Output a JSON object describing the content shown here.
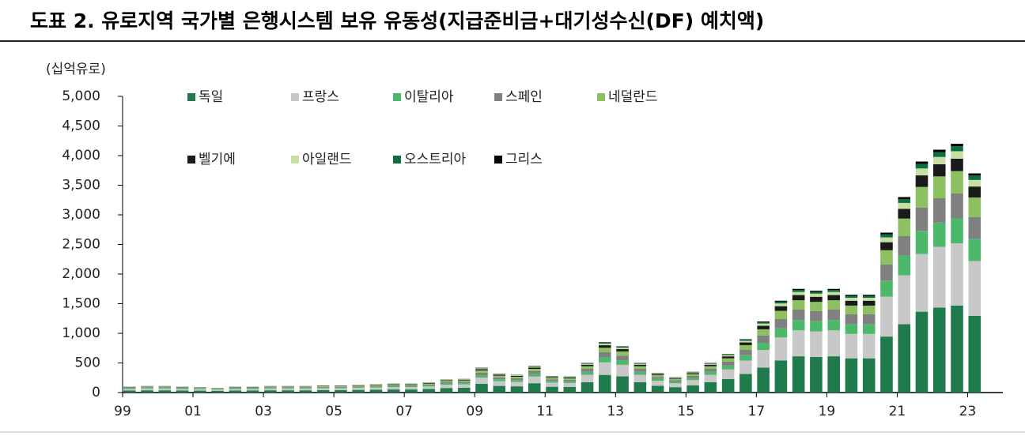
{
  "chart_data": {
    "type": "stacked-bar",
    "title": "도표 2. 유로지역 국가별 은행시스템 보유 유동성(지급준비금+대기성수신(DF) 예치액)",
    "y_label": "(십억유로)",
    "x": [
      1999,
      1999.5,
      2000,
      2000.5,
      2001,
      2001.5,
      2002,
      2002.5,
      2003,
      2003.5,
      2004,
      2004.5,
      2005,
      2005.5,
      2006,
      2006.5,
      2007,
      2007.5,
      2008,
      2008.5,
      2009,
      2009.5,
      2010,
      2010.5,
      2011,
      2011.5,
      2012,
      2012.5,
      2013,
      2013.5,
      2014,
      2014.5,
      2015,
      2015.5,
      2016,
      2016.5,
      2017,
      2017.5,
      2018,
      2018.5,
      2019,
      2019.5,
      2020,
      2020.5,
      2021,
      2021.5,
      2022,
      2022.5,
      2023
    ],
    "xlim": [
      1999,
      2024
    ],
    "xticks": [
      {
        "value": 1999,
        "label": "99"
      },
      {
        "value": 2001,
        "label": "01"
      },
      {
        "value": 2003,
        "label": "03"
      },
      {
        "value": 2005,
        "label": "05"
      },
      {
        "value": 2007,
        "label": "07"
      },
      {
        "value": 2009,
        "label": "09"
      },
      {
        "value": 2011,
        "label": "11"
      },
      {
        "value": 2013,
        "label": "13"
      },
      {
        "value": 2015,
        "label": "15"
      },
      {
        "value": 2017,
        "label": "17"
      },
      {
        "value": 2019,
        "label": "19"
      },
      {
        "value": 2021,
        "label": "21"
      },
      {
        "value": 2023,
        "label": "23"
      }
    ],
    "ylim": [
      0,
      5000
    ],
    "yticks": [
      0,
      500,
      {
        "value": 1000,
        "label": "1,000"
      },
      {
        "value": 1500,
        "label": "1,500"
      },
      {
        "value": 2000,
        "label": "2,000"
      },
      {
        "value": 2500,
        "label": "2,500"
      },
      {
        "value": 3000,
        "label": "3,000"
      },
      {
        "value": 3500,
        "label": "3,500"
      },
      {
        "value": 4000,
        "label": "4,000"
      },
      {
        "value": 4500,
        "label": "4,500"
      },
      {
        "value": 5000,
        "label": "5,000"
      }
    ],
    "series": [
      {
        "name": "독일",
        "color": "#1f7a4c",
        "values": [
          35,
          38,
          38,
          35,
          32,
          28,
          35,
          35,
          38,
          38,
          38,
          42,
          42,
          45,
          49,
          52,
          52,
          60,
          77,
          80,
          147,
          112,
          105,
          158,
          98,
          95,
          175,
          298,
          273,
          175,
          115,
          91,
          122,
          175,
          228,
          315,
          420,
          542,
          612,
          602,
          612,
          578,
          578,
          945,
          1155,
          1365,
          1435,
          1470,
          1295
        ]
      },
      {
        "name": "프랑스",
        "color": "#c8c8c8",
        "values": [
          25,
          28,
          28,
          25,
          22,
          20,
          25,
          25,
          28,
          28,
          28,
          30,
          30,
          33,
          35,
          38,
          38,
          42,
          55,
          58,
          105,
          80,
          75,
          112,
          70,
          67,
          125,
          212,
          195,
          125,
          83,
          65,
          88,
          125,
          162,
          225,
          300,
          388,
          438,
          430,
          438,
          412,
          412,
          675,
          825,
          975,
          1025,
          1050,
          925
        ]
      },
      {
        "name": "이탈리아",
        "color": "#4cb86a",
        "values": [
          10,
          11,
          11,
          10,
          9,
          8,
          10,
          10,
          11,
          11,
          11,
          12,
          12,
          13,
          14,
          15,
          15,
          17,
          22,
          23,
          42,
          32,
          30,
          45,
          28,
          27,
          50,
          85,
          78,
          50,
          33,
          26,
          35,
          50,
          65,
          90,
          120,
          155,
          175,
          172,
          175,
          165,
          165,
          270,
          330,
          390,
          410,
          420,
          370
        ]
      },
      {
        "name": "스페인",
        "color": "#808080",
        "values": [
          10,
          11,
          11,
          10,
          9,
          8,
          10,
          10,
          11,
          11,
          11,
          12,
          12,
          13,
          14,
          15,
          15,
          17,
          22,
          23,
          42,
          32,
          30,
          45,
          28,
          27,
          50,
          85,
          78,
          50,
          33,
          26,
          35,
          50,
          65,
          90,
          120,
          155,
          175,
          172,
          175,
          165,
          165,
          270,
          330,
          390,
          410,
          420,
          370
        ]
      },
      {
        "name": "네덜란드",
        "color": "#8cc060",
        "values": [
          9,
          10,
          10,
          9,
          8,
          7,
          9,
          9,
          10,
          10,
          10,
          11,
          11,
          12,
          13,
          14,
          14,
          15,
          20,
          21,
          38,
          29,
          27,
          40,
          25,
          24,
          45,
          76,
          70,
          45,
          30,
          23,
          32,
          45,
          58,
          81,
          108,
          140,
          158,
          155,
          158,
          148,
          148,
          243,
          297,
          351,
          369,
          378,
          333
        ]
      },
      {
        "name": "벨기에",
        "color": "#1a1a1a",
        "values": [
          5,
          6,
          6,
          5,
          5,
          4,
          5,
          5,
          6,
          6,
          6,
          6,
          6,
          7,
          7,
          8,
          8,
          9,
          11,
          12,
          21,
          16,
          15,
          23,
          14,
          14,
          25,
          43,
          39,
          25,
          17,
          13,
          18,
          25,
          33,
          45,
          60,
          78,
          88,
          86,
          88,
          82,
          82,
          135,
          165,
          195,
          205,
          210,
          185
        ]
      },
      {
        "name": "아일랜드",
        "color": "#c5e0a0",
        "values": [
          3,
          3,
          3,
          3,
          3,
          3,
          3,
          3,
          3,
          3,
          3,
          4,
          4,
          4,
          4,
          4,
          4,
          5,
          7,
          7,
          13,
          10,
          9,
          14,
          9,
          8,
          15,
          26,
          23,
          15,
          10,
          8,
          10,
          15,
          20,
          27,
          36,
          46,
          52,
          52,
          52,
          50,
          50,
          81,
          99,
          117,
          123,
          126,
          111
        ]
      },
      {
        "name": "오스트리아",
        "color": "#0e6e3e",
        "values": [
          2,
          2,
          2,
          2,
          1,
          1,
          2,
          2,
          2,
          2,
          2,
          2,
          2,
          2,
          3,
          3,
          3,
          3,
          4,
          4,
          8,
          6,
          6,
          9,
          6,
          5,
          10,
          17,
          16,
          10,
          6,
          5,
          7,
          10,
          13,
          18,
          24,
          31,
          35,
          34,
          35,
          33,
          33,
          54,
          66,
          78,
          82,
          84,
          74
        ]
      },
      {
        "name": "그리스",
        "color": "#000000",
        "values": [
          1,
          1,
          1,
          1,
          1,
          1,
          1,
          1,
          1,
          1,
          1,
          1,
          1,
          1,
          1,
          1,
          1,
          2,
          2,
          2,
          4,
          3,
          3,
          4,
          2,
          3,
          5,
          8,
          8,
          5,
          3,
          3,
          3,
          5,
          6,
          9,
          12,
          15,
          17,
          17,
          17,
          17,
          17,
          27,
          33,
          39,
          41,
          42,
          37
        ]
      }
    ]
  }
}
